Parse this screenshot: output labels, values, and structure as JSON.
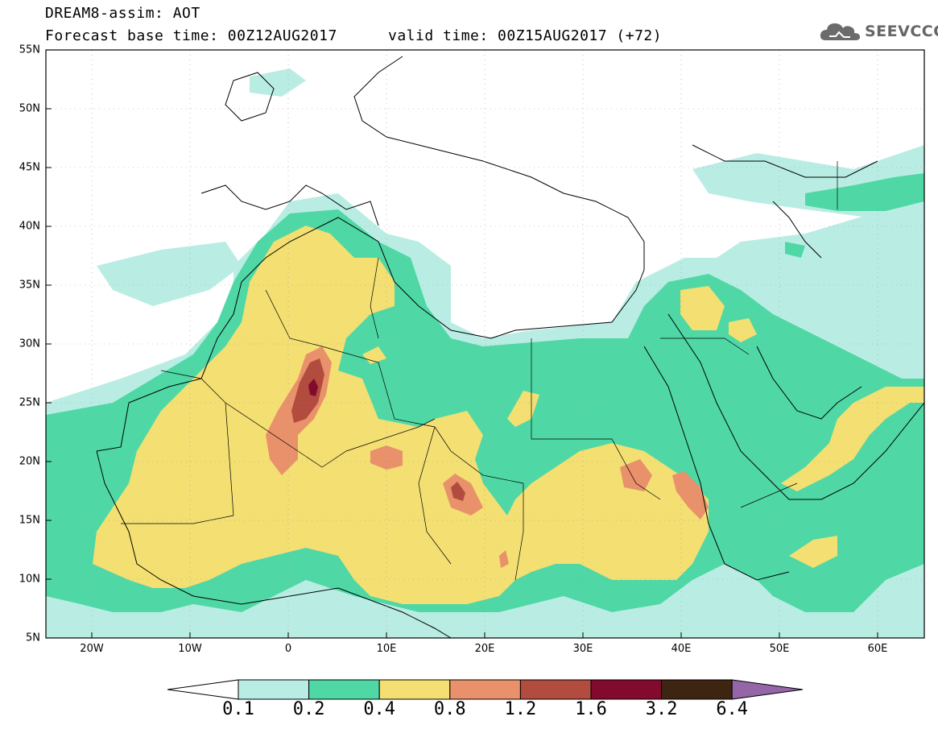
{
  "header": {
    "line1": "DREAM8-assim: AOT",
    "line2": "Forecast base time: 00Z12AUG2017",
    "valid": "valid time: 00Z15AUG2017 (+72)"
  },
  "logo": {
    "icon": "cloud-icon",
    "text": "SEEVCCC"
  },
  "axes": {
    "lat_labels": [
      "55N",
      "50N",
      "45N",
      "40N",
      "35N",
      "30N",
      "25N",
      "20N",
      "15N",
      "10N",
      "5N"
    ],
    "lon_labels": [
      "20W",
      "10W",
      "0",
      "10E",
      "20E",
      "30E",
      "40E",
      "50E",
      "60E"
    ]
  },
  "colorbar": {
    "labels": [
      "0.1",
      "0.2",
      "0.4",
      "0.8",
      "1.2",
      "1.6",
      "3.2",
      "6.4"
    ],
    "colors": [
      "#ffffff",
      "#b9ede4",
      "#4fd8a5",
      "#f3df72",
      "#e8916b",
      "#b24c3e",
      "#820a2d",
      "#3e2512",
      "#9466a8"
    ]
  },
  "legend_colors": {
    "l1": "#b9ede4",
    "l2": "#4fd8a5",
    "l3": "#f3df72",
    "l4": "#e8916b",
    "l5": "#b24c3e",
    "l6": "#820a2d"
  }
}
